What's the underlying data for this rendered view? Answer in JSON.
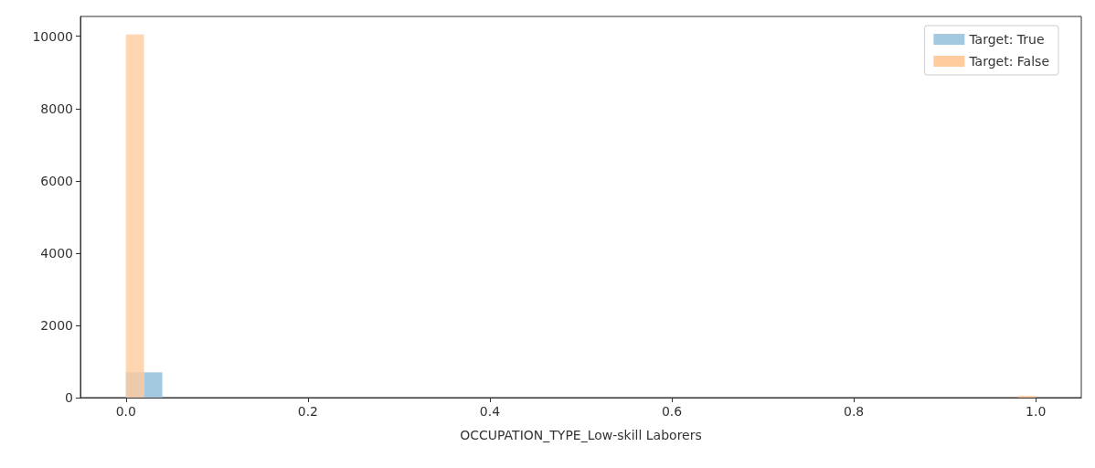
{
  "chart_data": {
    "type": "histogram",
    "xlabel": "OCCUPATION_TYPE_Low-skill Laborers",
    "xlim": [
      -0.05,
      1.05
    ],
    "ylim": [
      0,
      10550
    ],
    "xticks": [
      {
        "value": 0,
        "label": "0.0"
      },
      {
        "value": 0.2,
        "label": "0.2"
      },
      {
        "value": 0.4,
        "label": "0.4"
      },
      {
        "value": 0.6,
        "label": "0.6"
      },
      {
        "value": 0.8,
        "label": "0.8"
      },
      {
        "value": 1,
        "label": "1.0"
      }
    ],
    "yticks": [
      0,
      2000,
      4000,
      6000,
      8000,
      10000
    ],
    "grid": false,
    "legend": "top right",
    "bins": [
      0,
      0.02,
      0.04,
      0.06,
      0.08,
      0.1,
      0.12,
      0.14,
      0.16,
      0.18,
      0.2,
      0.22,
      0.24,
      0.26,
      0.28,
      0.3,
      0.32,
      0.34,
      0.36,
      0.38,
      0.4,
      0.42,
      0.44,
      0.46,
      0.48,
      0.5,
      0.52,
      0.54,
      0.56,
      0.58,
      0.6,
      0.62,
      0.64,
      0.66,
      0.68,
      0.7,
      0.72,
      0.74,
      0.76,
      0.78,
      0.8,
      0.82,
      0.84,
      0.86,
      0.88,
      0.9,
      0.92,
      0.94,
      0.96,
      0.98,
      1
    ],
    "series": [
      {
        "name": "Target: True",
        "color": "#a5c8e1",
        "values": [
          700,
          700,
          0,
          0,
          0,
          0,
          0,
          0,
          0,
          0,
          0,
          0,
          0,
          0,
          0,
          0,
          0,
          0,
          0,
          0,
          0,
          0,
          0,
          0,
          0,
          0,
          0,
          0,
          0,
          0,
          0,
          0,
          0,
          0,
          0,
          0,
          0,
          0,
          0,
          0,
          0,
          0,
          0,
          0,
          0,
          0,
          0,
          0,
          0,
          0
        ]
      },
      {
        "name": "Target: False",
        "color": "#ffcb9f",
        "values": [
          10050,
          0,
          0,
          0,
          0,
          0,
          0,
          0,
          0,
          0,
          0,
          0,
          0,
          0,
          0,
          0,
          0,
          0,
          0,
          0,
          0,
          0,
          0,
          0,
          0,
          0,
          0,
          0,
          0,
          0,
          0,
          0,
          0,
          0,
          0,
          0,
          0,
          0,
          0,
          0,
          0,
          0,
          0,
          0,
          0,
          0,
          0,
          0,
          0,
          50
        ]
      }
    ]
  }
}
